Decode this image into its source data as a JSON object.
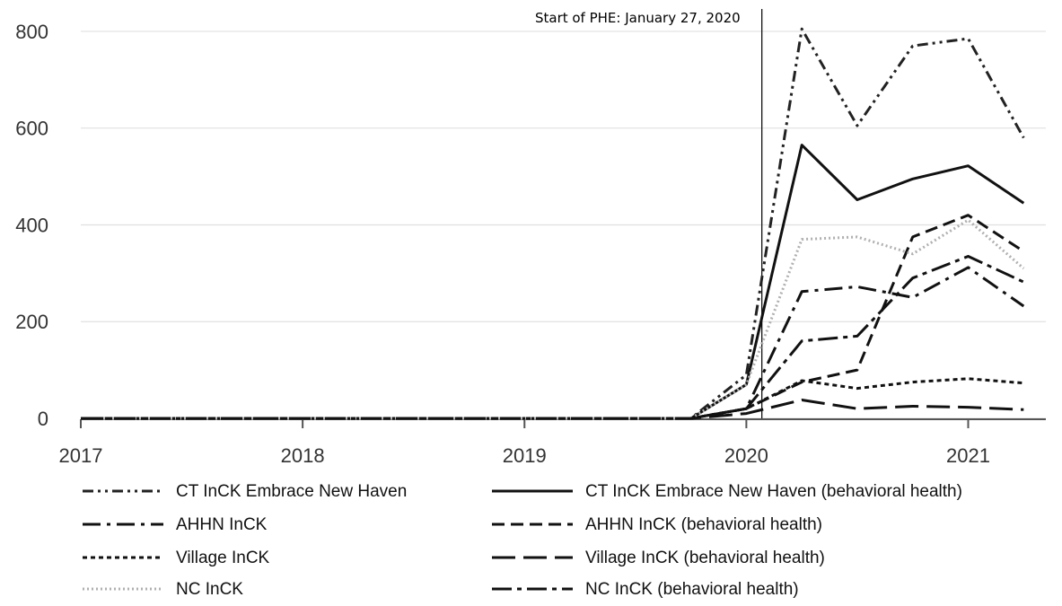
{
  "chart_data": {
    "type": "line",
    "title": "",
    "xlabel": "",
    "ylabel": "",
    "xlim": [
      2017.0,
      2021.35
    ],
    "ylim": [
      0,
      850
    ],
    "xticks": [
      "2017",
      "2018",
      "2019",
      "2020",
      "2021"
    ],
    "yticks": [
      "0",
      "200",
      "400",
      "600",
      "800"
    ],
    "grid": "horizontal",
    "legend_position": "bottom",
    "annotation": {
      "label": "Start of PHE: January 27, 2020",
      "x": 2020.07
    },
    "x": [
      2017.0,
      2017.25,
      2017.5,
      2017.75,
      2018.0,
      2018.25,
      2018.5,
      2018.75,
      2019.0,
      2019.25,
      2019.5,
      2019.75,
      2020.0,
      2020.25,
      2020.5,
      2020.75,
      2021.0,
      2021.25
    ],
    "series": [
      {
        "name": "CT InCK Embrace New Haven",
        "color": "#222222",
        "dash": "dashdotdot",
        "width": 3,
        "values": [
          0,
          0,
          0,
          0,
          0,
          0,
          0,
          0,
          0,
          0,
          0,
          0,
          90,
          805,
          605,
          770,
          785,
          580
        ]
      },
      {
        "name": "CT InCK Embrace New Haven (behavioral health)",
        "color": "#111111",
        "dash": "solid",
        "width": 3,
        "values": [
          0,
          0,
          0,
          0,
          0,
          0,
          0,
          0,
          0,
          0,
          0,
          0,
          70,
          565,
          452,
          495,
          522,
          445
        ]
      },
      {
        "name": "AHHN InCK",
        "color": "#111111",
        "dash": "longdashdot",
        "width": 3,
        "values": [
          0,
          0,
          0,
          0,
          0,
          0,
          0,
          0,
          0,
          0,
          0,
          0,
          20,
          262,
          272,
          250,
          312,
          232
        ]
      },
      {
        "name": "AHHN InCK (behavioral health)",
        "color": "#111111",
        "dash": "dash",
        "width": 3,
        "values": [
          0,
          0,
          0,
          0,
          0,
          0,
          0,
          0,
          0,
          0,
          0,
          0,
          20,
          75,
          100,
          375,
          420,
          345
        ]
      },
      {
        "name": "Village InCK",
        "color": "#111111",
        "dash": "shortdash",
        "width": 3,
        "values": [
          0,
          0,
          0,
          0,
          0,
          0,
          0,
          0,
          0,
          0,
          0,
          0,
          20,
          78,
          62,
          75,
          82,
          73
        ]
      },
      {
        "name": "Village InCK (behavioral health)",
        "color": "#111111",
        "dash": "longdash",
        "width": 3,
        "values": [
          0,
          0,
          0,
          0,
          0,
          0,
          0,
          0,
          0,
          0,
          0,
          0,
          10,
          38,
          20,
          25,
          23,
          18
        ]
      },
      {
        "name": "NC InCK",
        "color": "#b0b0b0",
        "dash": "dot",
        "width": 3,
        "values": [
          0,
          0,
          0,
          0,
          0,
          0,
          0,
          0,
          0,
          0,
          0,
          0,
          70,
          370,
          375,
          340,
          410,
          310
        ]
      },
      {
        "name": "NC InCK (behavioral health)",
        "color": "#111111",
        "dash": "dashdot",
        "width": 3,
        "values": [
          0,
          0,
          0,
          0,
          0,
          0,
          0,
          0,
          0,
          0,
          0,
          0,
          20,
          160,
          170,
          290,
          335,
          282
        ]
      }
    ]
  }
}
